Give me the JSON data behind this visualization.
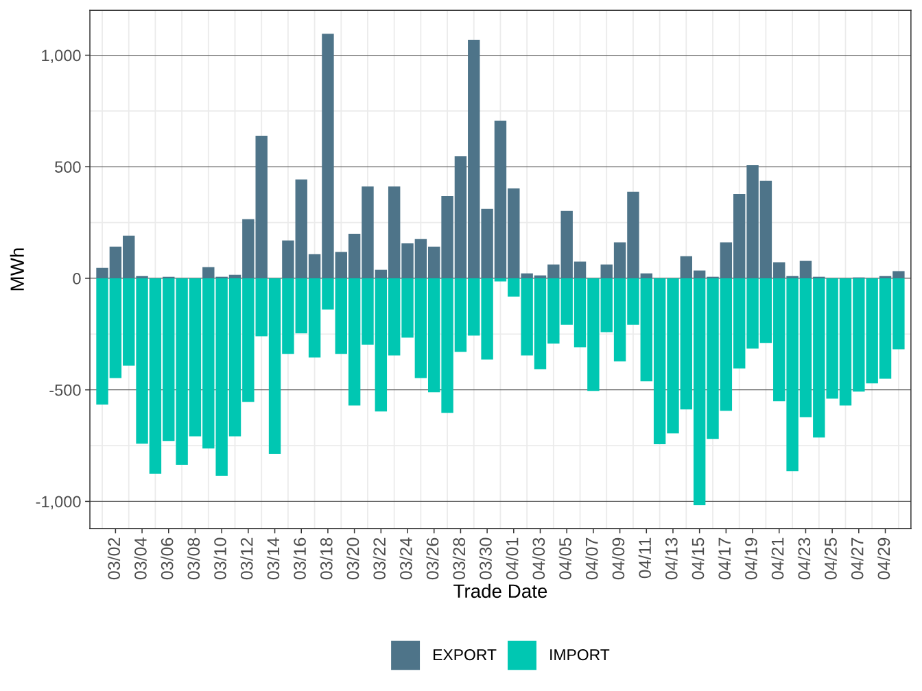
{
  "chart_data": {
    "type": "bar",
    "xlabel": "Trade Date",
    "ylabel": "MWh",
    "categories": [
      null,
      "03/02",
      null,
      "03/04",
      null,
      "03/06",
      null,
      "03/08",
      null,
      "03/10",
      null,
      "03/12",
      null,
      "03/14",
      null,
      "03/16",
      null,
      "03/18",
      null,
      "03/20",
      null,
      "03/22",
      null,
      "03/24",
      null,
      "03/26",
      null,
      "03/28",
      null,
      "03/30",
      null,
      "04/01",
      null,
      "04/03",
      null,
      "04/05",
      null,
      "04/07",
      null,
      "04/09",
      null,
      "04/11",
      null,
      "04/13",
      null,
      "04/15",
      null,
      "04/17",
      null,
      "04/19",
      null,
      "04/21",
      null,
      "04/23",
      null,
      "04/25",
      null,
      "04/27",
      null,
      "04/29",
      null
    ],
    "series": [
      {
        "name": "EXPORT",
        "color": "#4e7489",
        "values": [
          47,
          142,
          191,
          10,
          0,
          7,
          0,
          0,
          50,
          7,
          16,
          265,
          639,
          0,
          170,
          443,
          108,
          1096,
          118,
          200,
          412,
          38,
          412,
          157,
          176,
          142,
          369,
          547,
          1069,
          311,
          707,
          403,
          22,
          13,
          62,
          302,
          75,
          0,
          62,
          161,
          388,
          22,
          0,
          0,
          99,
          35,
          7,
          161,
          378,
          507,
          437,
          72,
          10,
          78,
          7,
          0,
          0,
          4,
          0,
          10,
          32
        ]
      },
      {
        "name": "IMPORT",
        "color": "#00c7b2",
        "values": [
          -566,
          -447,
          -392,
          -741,
          -876,
          -729,
          -836,
          -708,
          -763,
          -885,
          -708,
          -554,
          -260,
          -787,
          -339,
          -247,
          -355,
          -140,
          -339,
          -570,
          -297,
          -597,
          -346,
          -266,
          -447,
          -511,
          -603,
          -330,
          -257,
          -364,
          -14,
          -82,
          -346,
          -407,
          -293,
          -208,
          -309,
          -505,
          -241,
          -373,
          -208,
          -462,
          -744,
          -695,
          -588,
          -1017,
          -720,
          -594,
          -404,
          -315,
          -290,
          -551,
          -864,
          -622,
          -714,
          -539,
          -570,
          -508,
          -471,
          -450,
          -318
        ]
      }
    ],
    "stacked": true,
    "ylim": [
      -1122,
      1201
    ],
    "yticks": [
      {
        "value": -1000,
        "label": "-1,000"
      },
      -500,
      0,
      500,
      {
        "value": 1000,
        "label": "1,000"
      }
    ],
    "grid": true,
    "legend": "bottom"
  }
}
